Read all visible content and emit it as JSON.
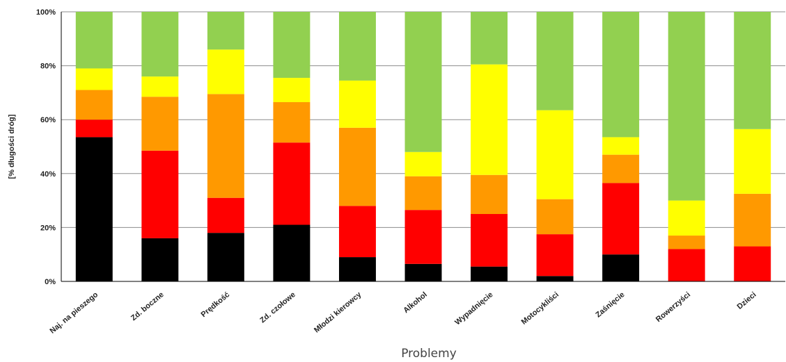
{
  "chart_data": {
    "type": "bar",
    "stacked": true,
    "xlabel": "Problemy",
    "ylabel": "[% długości dróg]",
    "ylim": [
      0,
      100
    ],
    "yticks": [
      "0%",
      "20%",
      "40%",
      "60%",
      "80%",
      "100%"
    ],
    "grid": true,
    "categories": [
      "Naj. na pieszego",
      "Zd. boczne",
      "Prędkość",
      "Zd. czołowe",
      "Młodzi kierowcy",
      "Alkohol",
      "Wypadnięcie",
      "Motocykliści",
      "Zaśnięcie",
      "Rowerzyści",
      "Dzieci"
    ],
    "series": [
      {
        "color": "#000000",
        "values": [
          53.5,
          16,
          18,
          21,
          9,
          6.5,
          5.5,
          2,
          10,
          0,
          0
        ]
      },
      {
        "color": "#ff0000",
        "values": [
          6.5,
          32.5,
          13,
          30.5,
          19,
          20,
          19.5,
          15.5,
          26.5,
          12,
          13
        ]
      },
      {
        "color": "#ff9900",
        "values": [
          11,
          20,
          38.5,
          15,
          29,
          12.5,
          14.5,
          13,
          10.5,
          5,
          19.5
        ]
      },
      {
        "color": "#ffff00",
        "values": [
          8,
          7.5,
          16.5,
          9,
          17.5,
          9,
          41,
          33,
          6.5,
          13,
          24
        ]
      },
      {
        "color": "#92d050",
        "values": [
          21,
          24,
          14,
          24.5,
          25.5,
          52,
          19.5,
          36.5,
          46.5,
          70,
          43.5
        ]
      }
    ]
  }
}
